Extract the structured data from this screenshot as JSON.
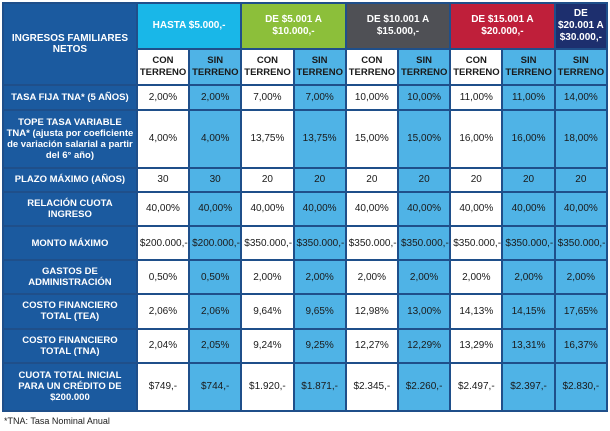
{
  "header": {
    "label": "INGRESOS FAMILIARES NETOS",
    "groups": [
      {
        "label": "HASTA $5.000,-",
        "bg": "#19b7e8",
        "fg": "#ffffff"
      },
      {
        "label": "DE $5.001 A $10.000,-",
        "bg": "#8cbf3a",
        "fg": "#ffffff"
      },
      {
        "label": "DE $10.001 A $15.000,-",
        "bg": "#4f5055",
        "fg": "#ffffff"
      },
      {
        "label": "DE $15.001 A $20.000,-",
        "bg": "#bf1f3a",
        "fg": "#ffffff"
      },
      {
        "label": "DE $20.001 A $30.000,-",
        "bg": "#1d2f6e",
        "fg": "#ffffff"
      }
    ]
  },
  "subheaders": [
    "CON TERRENO",
    "SIN TERRENO",
    "CON TERRENO",
    "SIN TERRENO",
    "CON TERRENO",
    "SIN TERRENO",
    "CON TERRENO",
    "SIN TERRENO",
    "SIN TERRENO"
  ],
  "rows": [
    {
      "label": "TASA FIJA TNA* (5 AÑOS)",
      "values": [
        "2,00%",
        "2,00%",
        "7,00%",
        "7,00%",
        "10,00%",
        "10,00%",
        "11,00%",
        "11,00%",
        "14,00%"
      ]
    },
    {
      "label": "TOPE TASA VARIABLE TNA* (ajusta por coeficiente de variación salarial a partir del 6° año)",
      "values": [
        "4,00%",
        "4,00%",
        "13,75%",
        "13,75%",
        "15,00%",
        "15,00%",
        "16,00%",
        "16,00%",
        "18,00%"
      ]
    },
    {
      "label": "PLAZO MÁXIMO (AÑOS)",
      "values": [
        "30",
        "30",
        "20",
        "20",
        "20",
        "20",
        "20",
        "20",
        "20"
      ]
    },
    {
      "label": "RELACIÓN CUOTA INGRESO",
      "values": [
        "40,00%",
        "40,00%",
        "40,00%",
        "40,00%",
        "40,00%",
        "40,00%",
        "40,00%",
        "40,00%",
        "40,00%"
      ]
    },
    {
      "label": "MONTO MÁXIMO",
      "values": [
        "$200.000,-",
        "$200.000,-",
        "$350.000,-",
        "$350.000,-",
        "$350.000,-",
        "$350.000,-",
        "$350.000,-",
        "$350.000,-",
        "$350.000,-"
      ]
    },
    {
      "label": "GASTOS DE ADMINISTRACIÓN",
      "values": [
        "0,50%",
        "0,50%",
        "2,00%",
        "2,00%",
        "2,00%",
        "2,00%",
        "2,00%",
        "2,00%",
        "2,00%"
      ]
    },
    {
      "label": "COSTO FINANCIERO TOTAL (TEA)",
      "values": [
        "2,06%",
        "2,06%",
        "9,64%",
        "9,65%",
        "12,98%",
        "13,00%",
        "14,13%",
        "14,15%",
        "17,65%"
      ]
    },
    {
      "label": "COSTO FINANCIERO TOTAL (TNA)",
      "values": [
        "2,04%",
        "2,05%",
        "9,24%",
        "9,25%",
        "12,27%",
        "12,29%",
        "13,29%",
        "13,31%",
        "16,37%"
      ]
    },
    {
      "label": "CUOTA TOTAL INICIAL PARA UN CRÉDITO DE $200.000",
      "values": [
        "$749,-",
        "$744,-",
        "$1.920,-",
        "$1.871,-",
        "$2.345,-",
        "$2.260,-",
        "$2.497,-",
        "$2.397,-",
        "$2.830,-"
      ]
    }
  ],
  "footnote": "*TNA: Tasa Nominal Anual"
}
